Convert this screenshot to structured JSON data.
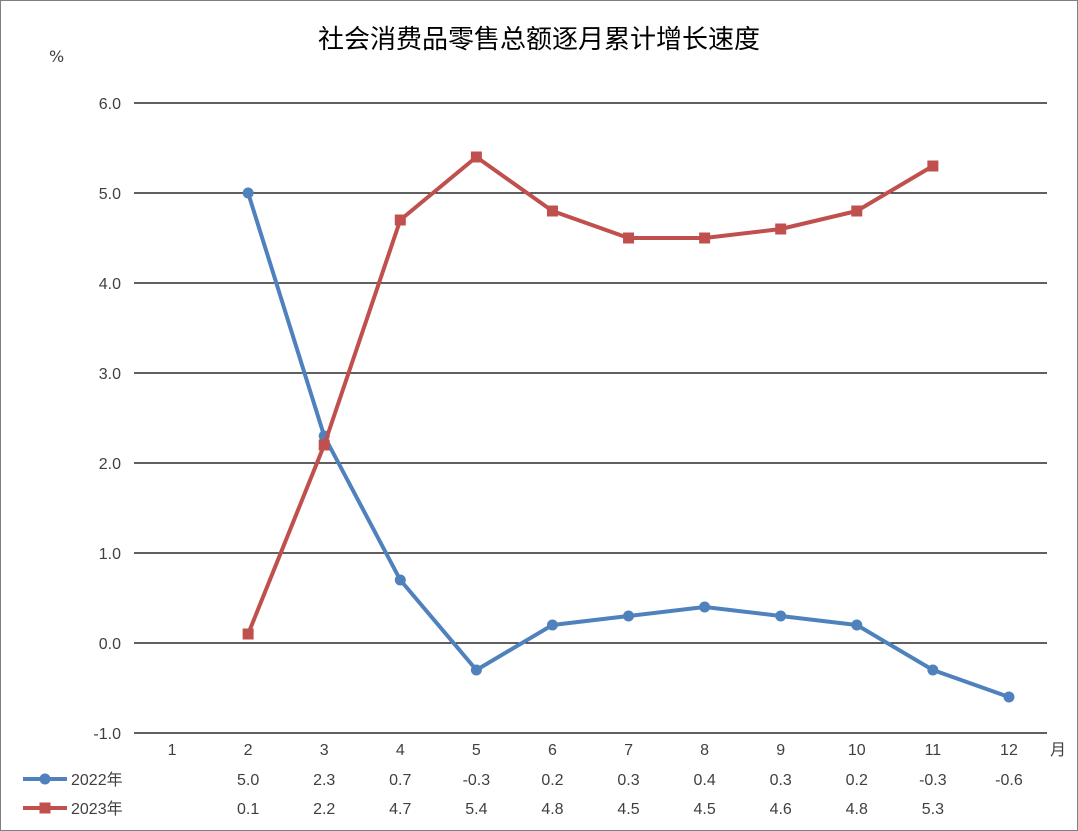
{
  "chart_data": {
    "type": "line",
    "title": "社会消费品零售总额逐月累计增长速度",
    "ylabel": "%",
    "xlabel": "月",
    "ylim": [
      -1.0,
      6.0
    ],
    "yticks": [
      "6.0",
      "5.0",
      "4.0",
      "3.0",
      "2.0",
      "1.0",
      "0.0",
      "-1.0"
    ],
    "categories": [
      "1",
      "2",
      "3",
      "4",
      "5",
      "6",
      "7",
      "8",
      "9",
      "10",
      "11",
      "12"
    ],
    "grid": true,
    "legend_position": "bottom-left data table",
    "series": [
      {
        "name": "2022年",
        "color": "#4f81bd",
        "marker": "circle",
        "values": [
          null,
          5.0,
          2.3,
          0.7,
          -0.3,
          0.2,
          0.3,
          0.4,
          0.3,
          0.2,
          -0.3,
          -0.6
        ],
        "table_labels": [
          "",
          "5.0",
          "2.3",
          "0.7",
          "-0.3",
          "0.2",
          "0.3",
          "0.4",
          "0.3",
          "0.2",
          "-0.3",
          "-0.6"
        ]
      },
      {
        "name": "2023年",
        "color": "#c0504d",
        "marker": "square",
        "values": [
          null,
          0.1,
          2.2,
          4.7,
          5.4,
          4.8,
          4.5,
          4.5,
          4.6,
          4.8,
          5.3,
          null
        ],
        "table_labels": [
          "",
          "0.1",
          "2.2",
          "4.7",
          "5.4",
          "4.8",
          "4.5",
          "4.5",
          "4.6",
          "4.8",
          "5.3",
          ""
        ]
      }
    ]
  }
}
